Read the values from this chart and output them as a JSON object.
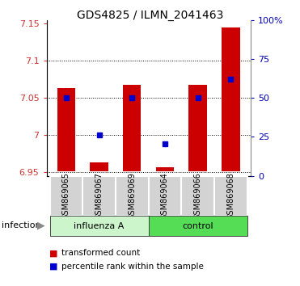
{
  "title": "GDS4825 / ILMN_2041463",
  "samples": [
    "GSM869065",
    "GSM869067",
    "GSM869069",
    "GSM869064",
    "GSM869066",
    "GSM869068"
  ],
  "groups": [
    "influenza A",
    "influenza A",
    "influenza A",
    "control",
    "control",
    "control"
  ],
  "group_labels": [
    "influenza A",
    "control"
  ],
  "bar_bottom": [
    6.951,
    6.951,
    6.951,
    6.951,
    6.951,
    6.951
  ],
  "bar_top": [
    7.063,
    6.963,
    7.068,
    6.957,
    7.068,
    7.145
  ],
  "blue_y": [
    7.05,
    7.0,
    7.05,
    6.988,
    7.05,
    7.075
  ],
  "ylim_left": [
    6.945,
    7.155
  ],
  "ylim_right": [
    0,
    100
  ],
  "yticks_left": [
    6.95,
    7.0,
    7.05,
    7.1,
    7.15
  ],
  "ytick_labels_left": [
    "6.95",
    "7",
    "7.05",
    "7.1",
    "7.15"
  ],
  "yticks_right": [
    0,
    25,
    50,
    75,
    100
  ],
  "ytick_labels_right": [
    "0",
    "25",
    "50",
    "75",
    "100%"
  ],
  "bar_color": "#cc0000",
  "blue_color": "#0000cc",
  "infection_label": "infection",
  "legend_red": "transformed count",
  "legend_blue": "percentile rank within the sample",
  "figsize": [
    3.71,
    3.54
  ],
  "dpi": 100
}
